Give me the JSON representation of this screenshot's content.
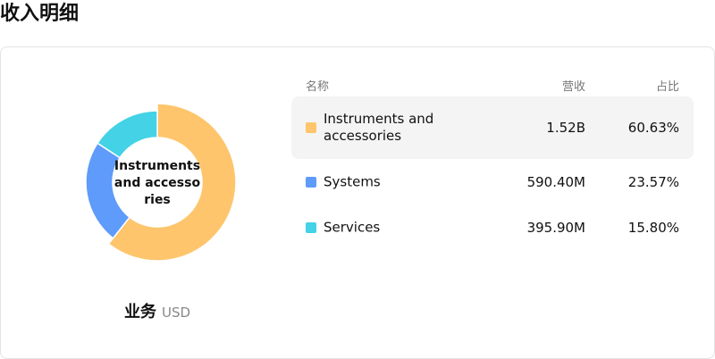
{
  "page": {
    "title": "收入明细"
  },
  "chart_data": {
    "type": "pie",
    "title": "",
    "center_label": "Instruments and accessories",
    "caption": "业务",
    "unit": "USD",
    "categories": [
      "Instruments and accessories",
      "Systems",
      "Services"
    ],
    "values": [
      60.63,
      23.57,
      15.8
    ],
    "colors": [
      "#fec56c",
      "#5e9bfa",
      "#43d2e6"
    ],
    "highlighted": "Instruments and accessories",
    "legend": "right (table)"
  },
  "table": {
    "headers": {
      "name": "名称",
      "revenue": "营收",
      "share": "占比"
    },
    "rows": [
      {
        "name": "Instruments and accessories",
        "revenue": "1.52B",
        "share": "60.63%",
        "color": "#fec56c"
      },
      {
        "name": "Systems",
        "revenue": "590.40M",
        "share": "23.57%",
        "color": "#5e9bfa"
      },
      {
        "name": "Services",
        "revenue": "395.90M",
        "share": "15.80%",
        "color": "#43d2e6"
      }
    ]
  }
}
